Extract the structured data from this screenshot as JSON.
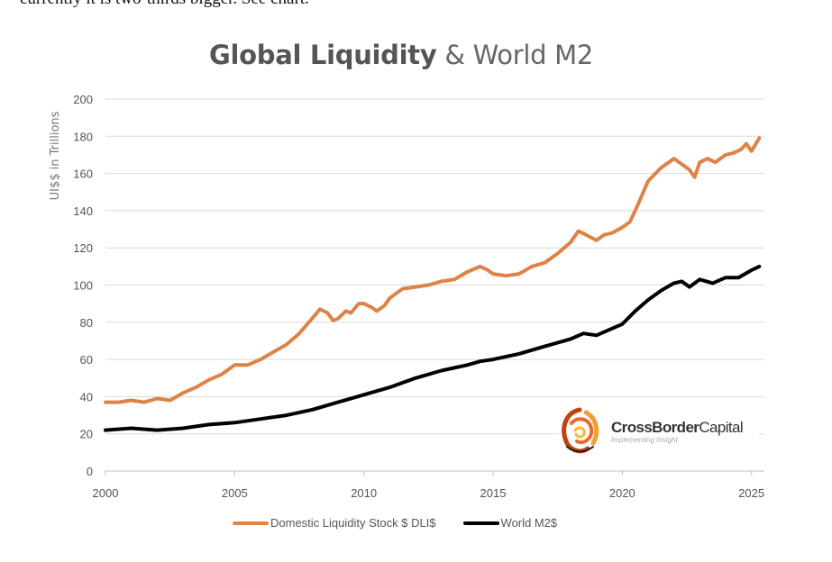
{
  "prose_text": "currently it is two-thirds bigger. See chart.",
  "colors": {
    "dli": "#dd8347",
    "m2": "#000000",
    "grid": "#d9d9d9",
    "axis": "#bfbfbf"
  },
  "logo": {
    "name_bold": "CrossBorder",
    "name_rest": "Capital",
    "tagline": "Implementing Insight",
    "icon": "crossborder-swirl-icon"
  },
  "chart_data": {
    "type": "line",
    "title_bold": "Global Liquidity",
    "title_rest": "& World M2",
    "xlabel": "",
    "ylabel": "UI$$ in Trillions",
    "xlim": [
      2000,
      2025.5
    ],
    "ylim": [
      0,
      200
    ],
    "xticks": [
      2000,
      2005,
      2010,
      2015,
      2020,
      2025
    ],
    "yticks": [
      0,
      20,
      40,
      60,
      80,
      100,
      120,
      140,
      160,
      180,
      200
    ],
    "grid": true,
    "legend_position": "bottom",
    "series": [
      {
        "name": "Domestic Liquidity Stock $ DLI$",
        "color": "#dd8347",
        "x": [
          2000,
          2000.5,
          2001,
          2001.5,
          2002,
          2002.5,
          2003,
          2003.5,
          2004,
          2004.5,
          2005,
          2005.5,
          2006,
          2006.5,
          2007,
          2007.5,
          2008,
          2008.3,
          2008.6,
          2008.8,
          2009,
          2009.3,
          2009.5,
          2009.8,
          2010,
          2010.3,
          2010.5,
          2010.8,
          2011,
          2011.3,
          2011.5,
          2012,
          2012.5,
          2013,
          2013.5,
          2014,
          2014.5,
          2014.8,
          2015,
          2015.5,
          2016,
          2016.5,
          2017,
          2017.5,
          2018,
          2018.3,
          2018.6,
          2019,
          2019.3,
          2019.6,
          2020,
          2020.3,
          2020.6,
          2021,
          2021.5,
          2022,
          2022.3,
          2022.6,
          2022.8,
          2023,
          2023.3,
          2023.6,
          2024,
          2024.3,
          2024.6,
          2024.8,
          2025,
          2025.3
        ],
        "values": [
          37,
          37,
          38,
          37,
          39,
          38,
          42,
          45,
          49,
          52,
          57,
          57,
          60,
          64,
          68,
          74,
          82,
          87,
          85,
          81,
          82,
          86,
          85,
          90,
          90,
          88,
          86,
          89,
          93,
          96,
          98,
          99,
          100,
          102,
          103,
          107,
          110,
          108,
          106,
          105,
          106,
          110,
          112,
          117,
          123,
          129,
          127,
          124,
          127,
          128,
          131,
          134,
          143,
          156,
          163,
          168,
          165,
          162,
          158,
          166,
          168,
          166,
          170,
          171,
          173,
          176,
          172,
          179
        ]
      },
      {
        "name": "World M2$",
        "color": "#000000",
        "x": [
          2000,
          2001,
          2002,
          2003,
          2004,
          2005,
          2006,
          2007,
          2008,
          2009,
          2010,
          2011,
          2012,
          2013,
          2014,
          2014.5,
          2015,
          2016,
          2017,
          2018,
          2018.5,
          2019,
          2019.5,
          2020,
          2020.5,
          2021,
          2021.5,
          2022,
          2022.3,
          2022.6,
          2023,
          2023.5,
          2024,
          2024.5,
          2025,
          2025.3
        ],
        "values": [
          22,
          23,
          22,
          23,
          25,
          26,
          28,
          30,
          33,
          37,
          41,
          45,
          50,
          54,
          57,
          59,
          60,
          63,
          67,
          71,
          74,
          73,
          76,
          79,
          86,
          92,
          97,
          101,
          102,
          99,
          103,
          101,
          104,
          104,
          108,
          110
        ]
      }
    ]
  }
}
